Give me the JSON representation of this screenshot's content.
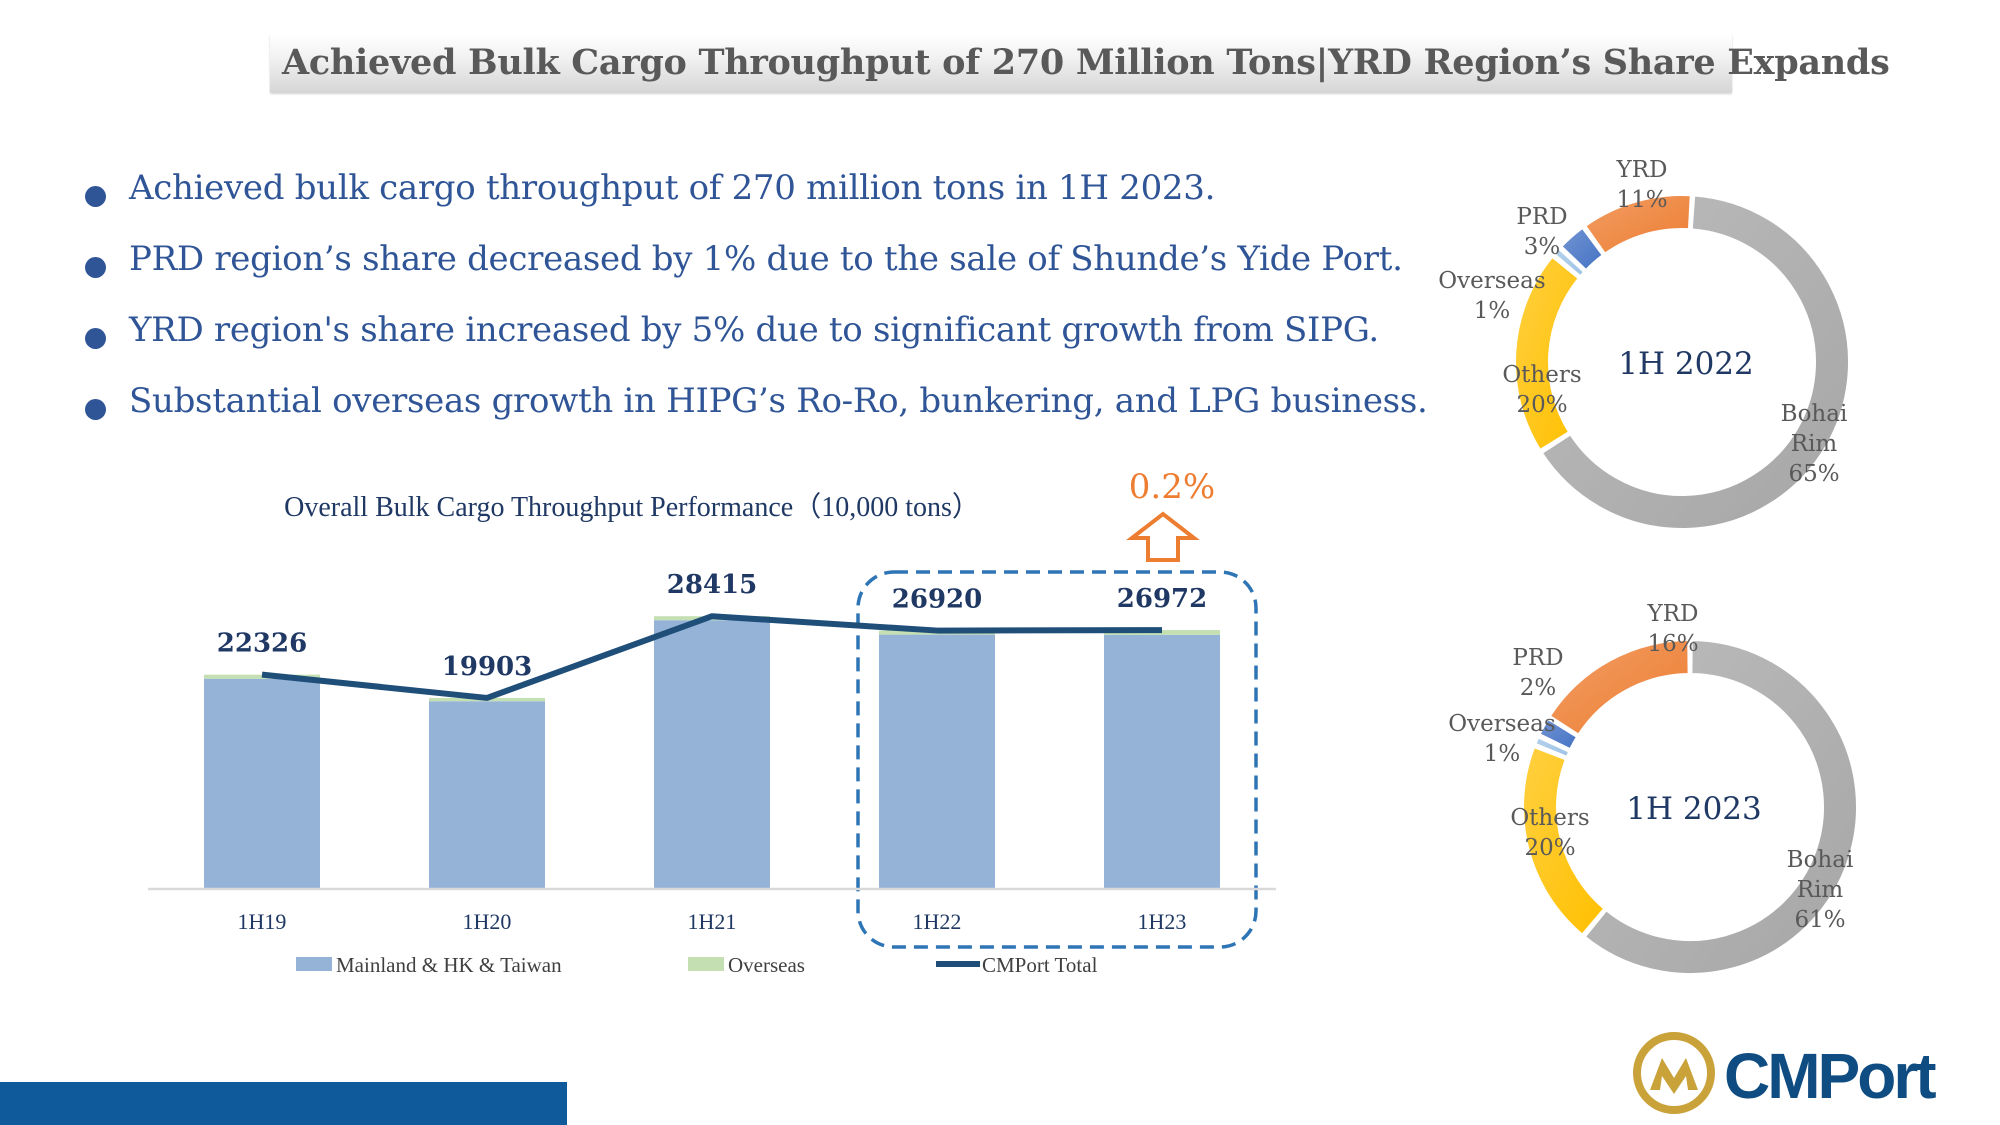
{
  "title": "Achieved Bulk Cargo Throughput of 270 Million Tons|YRD Region’s Share Expands",
  "bullets": [
    "Achieved bulk cargo throughput of 270 million tons in 1H 2023.",
    "PRD region’s share decreased by 1% due to the sale of Shunde’s Yide Port.",
    "YRD region's share increased by 5% due to significant growth from SIPG.",
    "Substantial overseas growth in HIPG’s Ro-Ro, bunkering, and LPG business."
  ],
  "chart_data": [
    {
      "type": "bar",
      "title": "Overall Bulk Cargo Throughput Performance（10,000 tons）",
      "categories": [
        "1H19",
        "1H20",
        "1H21",
        "1H22",
        "1H23"
      ],
      "series": [
        {
          "name": "Mainland & HK & Taiwan",
          "type": "bar",
          "stacked": true,
          "color": "#95b3d7",
          "values": [
            21900,
            19560,
            28000,
            26500,
            26480
          ]
        },
        {
          "name": "Overseas",
          "type": "bar",
          "stacked": true,
          "color": "#c4e0b2",
          "values": [
            426,
            343,
            415,
            420,
            492
          ]
        },
        {
          "name": "CMPort Total",
          "type": "line",
          "color": "#1f4e79",
          "values": [
            22326,
            19903,
            28415,
            26920,
            26972
          ]
        }
      ],
      "data_labels": [
        "22326",
        "19903",
        "28415",
        "26920",
        "26972"
      ],
      "legend_position": "bottom",
      "annotation": "0.2%",
      "annotation_color": "#ed7d31",
      "highlight_box_color": "#2e75b6"
    },
    {
      "type": "pie",
      "variant": "donut",
      "center_label": "1H 2022",
      "slices": [
        {
          "label": "Bohai Rim",
          "pct_text": "65%",
          "value": 65,
          "color": "#a6a6a6"
        },
        {
          "label": "Others",
          "pct_text": "20%",
          "value": 20,
          "color": "#ffc000"
        },
        {
          "label": "Overseas",
          "pct_text": "1%",
          "value": 1,
          "color": "#9dc3e6"
        },
        {
          "label": "PRD",
          "pct_text": "3%",
          "value": 3,
          "color": "#4472c4"
        },
        {
          "label": "YRD",
          "pct_text": "11%",
          "value": 11,
          "color": "#ed7d31"
        }
      ]
    },
    {
      "type": "pie",
      "variant": "donut",
      "center_label": "1H 2023",
      "slices": [
        {
          "label": "Bohai Rim",
          "pct_text": "61%",
          "value": 61,
          "color": "#a6a6a6"
        },
        {
          "label": "Others",
          "pct_text": "20%",
          "value": 20,
          "color": "#ffc000"
        },
        {
          "label": "Overseas",
          "pct_text": "1%",
          "value": 1,
          "color": "#9dc3e6"
        },
        {
          "label": "PRD",
          "pct_text": "2%",
          "value": 2,
          "color": "#4472c4"
        },
        {
          "label": "YRD",
          "pct_text": "16%",
          "value": 16,
          "color": "#ed7d31"
        }
      ]
    }
  ],
  "logo": {
    "text": "CMPort",
    "icon": "cmport-emblem-icon",
    "brand_color": "#0f4c81",
    "emblem_color": "#c9a23a"
  },
  "colors": {
    "accent": "#2f5597",
    "bottom_bar": "#0f5a9a"
  }
}
